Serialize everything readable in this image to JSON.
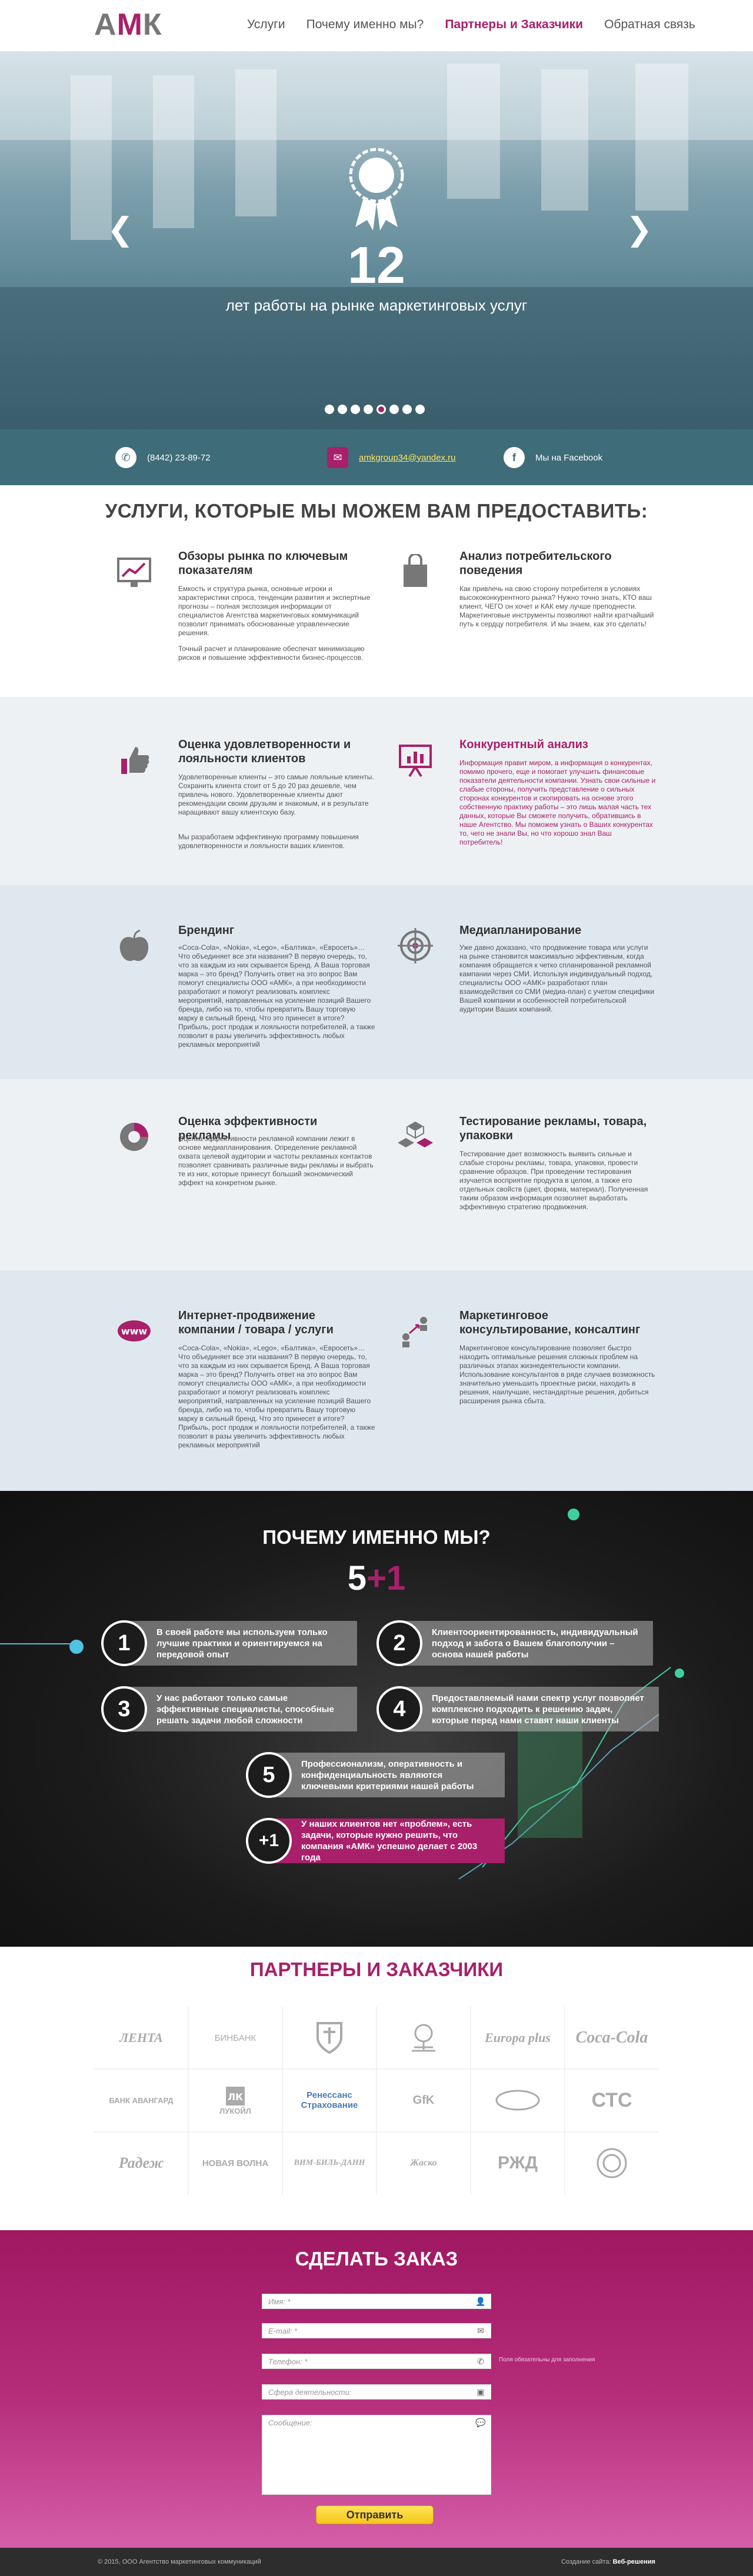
{
  "header": {
    "logo": "АМК",
    "nav": [
      "Услуги",
      "Почему именно мы?",
      "Партнеры и Заказчики",
      "Обратная связь"
    ],
    "active_index": 2
  },
  "hero": {
    "number": "12",
    "caption": "лет работы на рынке маркетинговых услуг",
    "slides": 8,
    "active_slide": 5,
    "prev": "❮",
    "next": "❯"
  },
  "contacts": {
    "phone": "(8442) 23-89-72",
    "email": "amkgroup34@yandex.ru",
    "facebook": "Мы на Facebook"
  },
  "services": {
    "title": "УСЛУГИ, КОТОРЫЕ МЫ МОЖЕМ ВАМ ПРЕДОСТАВИТЬ:",
    "items": [
      {
        "title": "Обзоры рынка по ключевым показателям",
        "icon": "chart-icon",
        "text": "Емкость и структура рынка, основные игроки и характеристики спроса, тенденции развития и экспертные прогнозы – полная экспозиция информации от специалистов Агентства маркетинговых коммуникаций позволит принимать обоснованные управленческие решения.",
        "text2": "Точный расчет и планирование обеспечат минимизацию рисков и повышение эффективности бизнес-процессов."
      },
      {
        "title": "Анализ потребительского поведения",
        "icon": "bag-icon",
        "text": "Как привлечь на свою сторону потребителя в условиях высококонкурентного рынка? Нужно точно знать, КТО ваш клиент, ЧЕГО он хочет и КАК ему лучше преподнести. Маркетинговые инструменты позволяют найти кратчайший путь к сердцу потребителя. И мы знаем, как это сделать!",
        "text2": ""
      },
      {
        "title": "Оценка удовлетворенности и лояльности клиентов",
        "icon": "thumb-icon",
        "text": "Удовлетворенные клиенты – это самые лояльные клиенты. Сохранить клиента стоит от 5 до 20 раз дешевле, чем привлечь нового. Удовлетворенные клиенты дают рекомендации своим друзьям и знакомым, и в результате наращивают вашу клиентскую базу.",
        "text2": "Мы разработаем эффективную программу повышения удовлетворенности и лояльности ваших клиентов."
      },
      {
        "title": "Конкурентный анализ",
        "icon": "presentation-icon",
        "text": "Информация правит миром, а информация о конкурентах, помимо прочего, еще и помогает улучшить финансовые показатели деятельности компании. Узнать свои сильные и слабые стороны, получить представление о сильных сторонах конкурентов и скопировать на основе этого собственную практику работы – это лишь малая часть тех данных, которые Вы сможете получить, обратившись в наше Агентство. Мы поможем узнать о Ваших конкурентах то, чего не знали Вы, но что хорошо знал Ваш потребитель!",
        "text2": ""
      },
      {
        "title": "Брендинг",
        "icon": "apple-icon",
        "text": "«Coca-Cola», «Nokia», «Lego», «Балтика», «Евросеть»… Что объединяет все эти названия? В первую очередь, то, что за каждым из них скрывается Бренд. А Ваша торговая марка – это бренд? Получить ответ на это вопрос Вам помогут специалисты ООО «АМК», а при необходимости разработают и помогут реализовать комплекс мероприятий, направленных на усиление позиций Вашего бренда, либо на то, чтобы превратить Вашу торговую марку в сильный бренд. Что это принесет в итоге? Прибыль, рост продаж и лояльности потребителей, а также позволит в разы увеличить эффективность любых рекламных мероприятий",
        "text2": ""
      },
      {
        "title": "Медиапланирование",
        "icon": "target-icon",
        "text": "Уже давно доказано, что продвижение товара или услуги на рынке становится максимально эффективным, когда компания обращается к четко спланированной рекламной кампании через СМИ. Используя индивидуальный подход, специалисты ООО «АМК» разработают план взаимодействия со СМИ (медиа-план) с учетом специфики Вашей компании и особенностей потребительской аудитории Ваших компаний.",
        "text2": ""
      },
      {
        "title": "Оценка эффективности рекламы",
        "icon": "pie-icon",
        "text": "Оценка эффективности рекламной компании лежит в основе медиапланирования. Определение рекламной охвата целевой аудитории и частоты рекламных контактов позволяет сравнивать различные виды рекламы и выбрать те из них, которые принесут больший экономический эффект на конкретном рынке.",
        "text2": ""
      },
      {
        "title": "Тестирование рекламы, товара, упаковки",
        "icon": "boxes-icon",
        "text": "Тестирование дает возможность выявить сильные и слабые стороны рекламы, товара, упаковки, провести сравнение образцов. При проведении тестирования изучается восприятие продукта в целом, а также его отдельных свойств (цвет, форма, материал). Полученная таким образом информация позволяет выработать эффективную стратегию продвижения.",
        "text2": ""
      },
      {
        "title": "Интернет-продвижение компании / товара / услуги",
        "icon": "www-icon",
        "text": "«Coca-Cola», «Nokia», «Lego», «Балтика», «Евросеть»… Что объединяет все эти названия? В первую очередь, то, что за каждым из них скрывается Бренд. А Ваша торговая марка – это бренд? Получить ответ на это вопрос Вам помогут специалисты ООО «АМК», а при необходимости разработают и помогут реализовать комплекс мероприятий, направленных на усиление позиций Вашего бренда, либо на то, чтобы превратить Вашу торговую марку в сильный бренд. Что это принесет в итоге? Прибыль, рост продаж и лояльности потребителей, а также позволит в разы увеличить эффективность любых рекламных мероприятий",
        "text2": ""
      },
      {
        "title": "Маркетинговое консультирование, консалтинг",
        "icon": "consult-icon",
        "text": "Маркетинговое консультирование позволяет быстро находить оптимальные решения сложных проблем на различных этапах жизнедеятельности компании. Использование консультантов в ряде случаев возможность значительно уменьшить проектные риски, находить в решения, наилучшие, нестандартные решения, добиться расширения рынка сбыта.",
        "text2": ""
      }
    ]
  },
  "why": {
    "title": "ПОЧЕМУ ИМЕННО МЫ?",
    "num_a": "5",
    "num_b": "+1",
    "items": [
      {
        "n": "1",
        "t": "В своей работе мы используем только лучшие практики и ориентируемся на передовой опыт"
      },
      {
        "n": "2",
        "t": "Клиентоориентированность, индивидуальный подход и забота о Вашем благополучии – основа нашей работы"
      },
      {
        "n": "3",
        "t": "У нас работают только самые эффективные специалисты, способные решать задачи любой сложности"
      },
      {
        "n": "4",
        "t": "Предоставляемый нами спектр услуг позволяет комплексно подходить к решению задач, которые перед нами ставят наши клиенты"
      },
      {
        "n": "5",
        "t": "Профессионализм, оперативность и конфиденциальность являются ключевыми критериями нашей работы"
      },
      {
        "n": "+1",
        "t": "У наших клиентов нет «проблем», есть задачи, которые нужно решить, что компания «АМК» успешно делает с 2003 года"
      }
    ]
  },
  "partners": {
    "title": "ПАРТНЕРЫ И ЗАКАЗЧИКИ",
    "logos": [
      "ЛЕНТА",
      "БИНБАНК",
      "",
      "",
      "Europa plus",
      "Coca-Cola",
      "БАНК АВАНГАРД",
      "ЛУКОЙЛ",
      "Ренессанс Страхование",
      "GfK",
      "",
      "СТС",
      "Радеж",
      "НОВАЯ ВОЛНА",
      "ВИМ-БИЛЬ-ДАНН",
      "Жаско",
      "РЖД",
      ""
    ]
  },
  "order": {
    "title": "СДЕЛАТЬ ЗАКАЗ",
    "fields": [
      "Имя: *",
      "E-mail: *",
      "Телефон: *",
      "Сфера деятельности:",
      "Сообщение:"
    ],
    "required_note": "Поля обязательны для заполнения",
    "submit": "Отправить"
  },
  "footer": {
    "copy": "© 2015, ООО Агентство маркетинговых коммуникаций",
    "credit": "Создание сайта:",
    "credit_name": "Веб-решения"
  },
  "colors": {
    "brand": "#a8206a",
    "teal": "#3e6c79"
  }
}
